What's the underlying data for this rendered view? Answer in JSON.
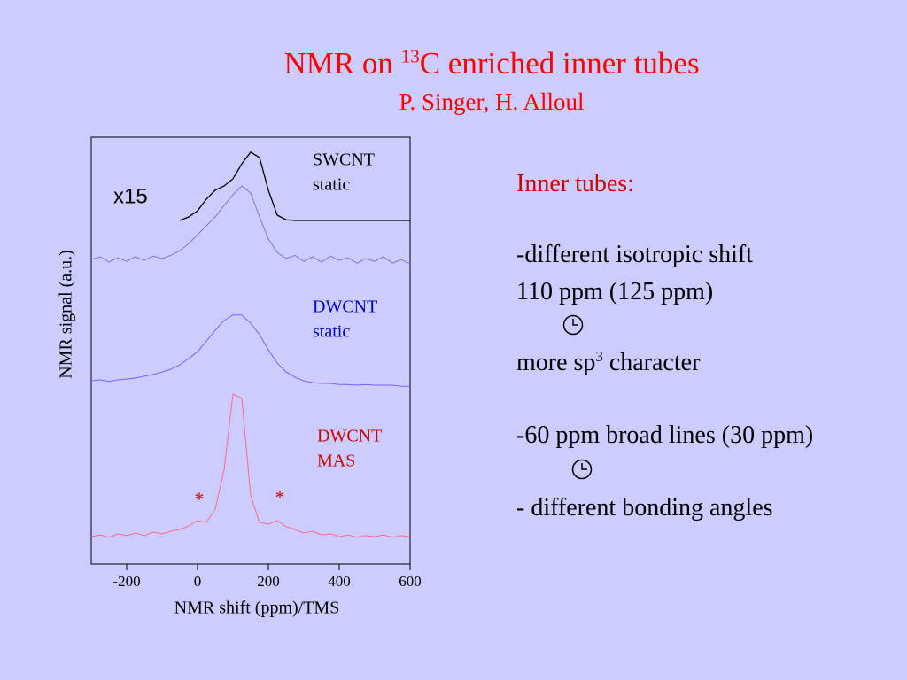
{
  "header": {
    "title_prefix": "NMR on ",
    "title_sup": "13",
    "title_suffix": "C enriched inner tubes",
    "authors": "P. Singer, H. Alloul"
  },
  "chart_data": {
    "type": "line",
    "xlabel": "NMR shift (ppm)/TMS",
    "ylabel": "NMR signal (a.u.)",
    "xlim": [
      -300,
      600
    ],
    "xticks": [
      -200,
      0,
      200,
      400,
      600
    ],
    "ylim": [
      0,
      12
    ],
    "scale_annotation": "x15",
    "sideband_marker": "*",
    "x": [
      -300,
      -275,
      -250,
      -225,
      -200,
      -175,
      -150,
      -125,
      -100,
      -75,
      -50,
      -25,
      0,
      25,
      50,
      75,
      100,
      125,
      150,
      175,
      200,
      225,
      250,
      275,
      300,
      325,
      350,
      375,
      400,
      425,
      450,
      475,
      500,
      525,
      550,
      575,
      600
    ],
    "series": [
      {
        "color": "#000000",
        "values": [
          null,
          null,
          null,
          null,
          null,
          null,
          null,
          null,
          null,
          null,
          9.66,
          9.76,
          9.93,
          10.26,
          10.51,
          10.63,
          10.83,
          11.25,
          11.58,
          11.43,
          10.51,
          9.81,
          9.68,
          9.66,
          9.66,
          9.66,
          9.66,
          9.66,
          9.66,
          9.66,
          9.66,
          9.66,
          9.66,
          9.66,
          9.66,
          9.66,
          9.66
        ]
      },
      {
        "color": "#7a7ad0",
        "label": [
          "SWCNT",
          "static"
        ],
        "label_color": "#000000",
        "values": [
          8.56,
          8.64,
          8.49,
          8.61,
          8.51,
          8.64,
          8.54,
          8.66,
          8.59,
          8.68,
          8.81,
          9.01,
          9.26,
          9.51,
          9.76,
          10.08,
          10.38,
          10.63,
          10.43,
          9.76,
          9.14,
          8.76,
          8.59,
          8.68,
          8.51,
          8.64,
          8.49,
          8.66,
          8.54,
          8.61,
          8.46,
          8.59,
          8.51,
          8.64,
          8.46,
          8.56,
          8.44
        ]
      },
      {
        "color": "#6a6aff",
        "label": [
          "DWCNT",
          "static"
        ],
        "label_color": "#0000cc",
        "values": [
          5.15,
          5.18,
          5.13,
          5.18,
          5.2,
          5.23,
          5.28,
          5.33,
          5.4,
          5.48,
          5.6,
          5.78,
          5.97,
          6.27,
          6.57,
          6.85,
          7.0,
          7.0,
          6.77,
          6.45,
          6.02,
          5.65,
          5.4,
          5.25,
          5.15,
          5.1,
          5.08,
          5.08,
          5.05,
          5.05,
          5.03,
          5.05,
          5.03,
          5.03,
          5.03,
          5.0,
          5.0
        ]
      },
      {
        "color": "#ff6a8a",
        "label": [
          "DWCNT",
          "MAS"
        ],
        "label_color": "#cc0000",
        "values": [
          0.77,
          0.82,
          0.75,
          0.85,
          0.8,
          0.87,
          0.8,
          0.9,
          0.85,
          0.92,
          0.97,
          1.07,
          1.22,
          1.17,
          1.54,
          2.66,
          4.78,
          4.66,
          1.92,
          1.17,
          1.12,
          1.22,
          1.05,
          0.97,
          0.87,
          0.92,
          0.82,
          0.85,
          0.77,
          0.82,
          0.75,
          0.8,
          0.77,
          0.82,
          0.75,
          0.8,
          0.77
        ]
      }
    ]
  },
  "notes": {
    "heading": "Inner tubes:",
    "line1": "-different isotropic shift",
    "line2": "110 ppm (125 ppm)",
    "line3_prefix": "more sp",
    "line3_sup": "3",
    "line3_suffix": " character",
    "line4": "-60 ppm broad lines (30 ppm)",
    "line5": "- different bonding angles"
  }
}
